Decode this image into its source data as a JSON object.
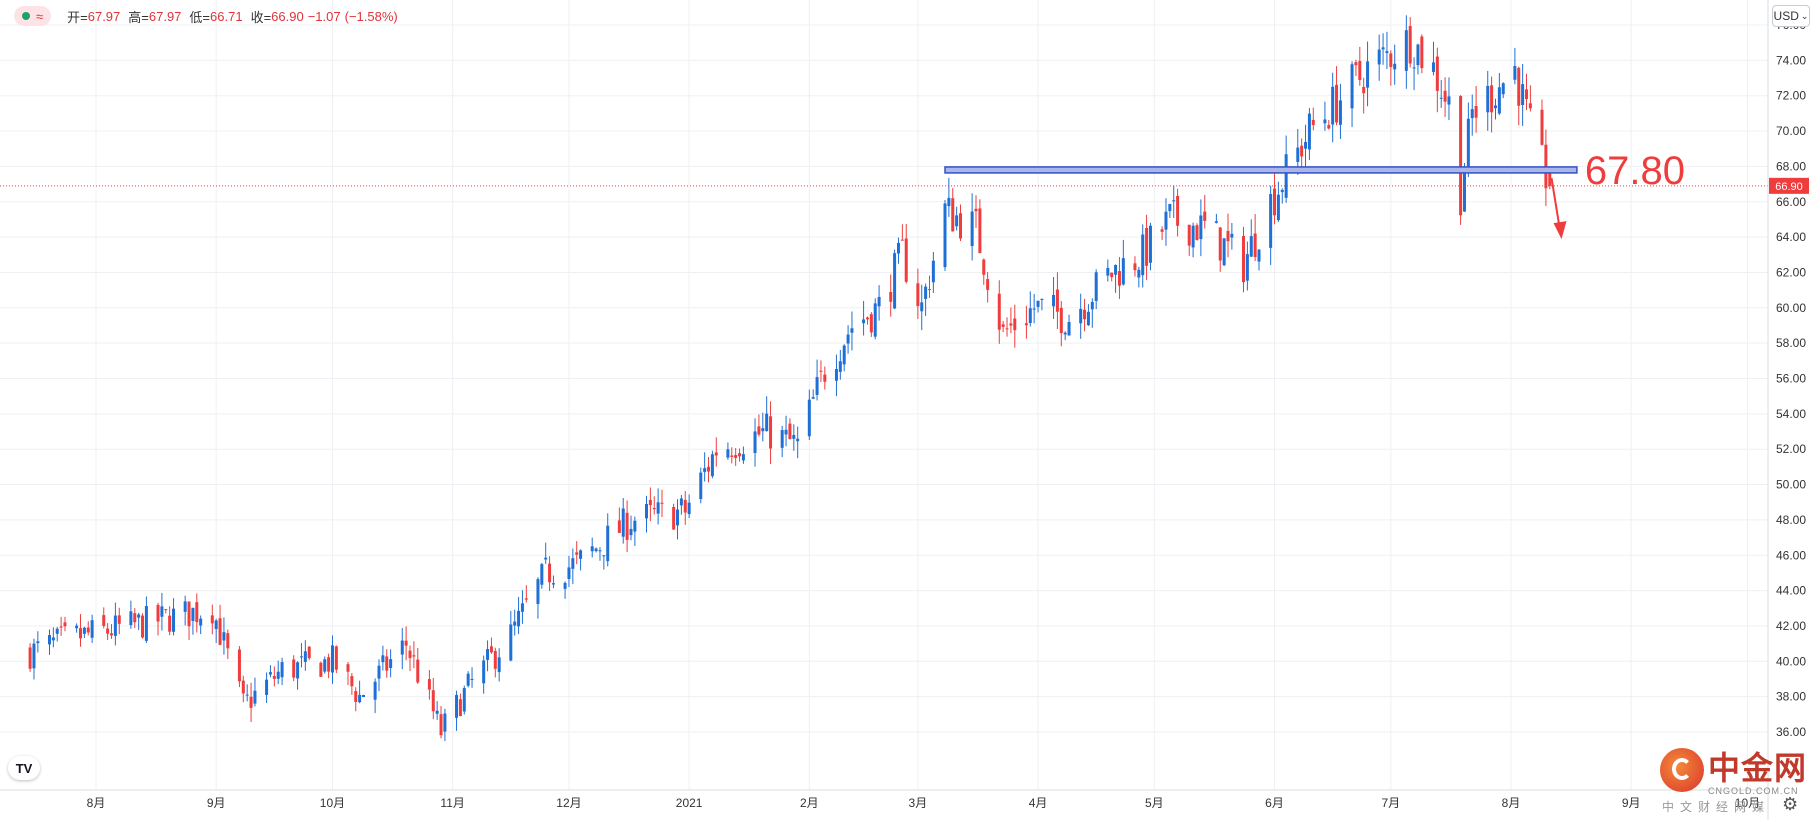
{
  "legend": {
    "symbol_icon": "wave-icon",
    "open_label": "开=",
    "open": "67.97",
    "high_label": "高=",
    "high": "67.97",
    "low_label": "低=",
    "low": "66.71",
    "close_label": "收=",
    "close": "66.90",
    "change": "−1.07",
    "change_pct": "(−1.58%)"
  },
  "currency_button": "USD",
  "watermark": {
    "brand": "中金网",
    "domain": "CNGOLD.COM.CN",
    "sub": "中文财经网媒"
  },
  "chart_data": {
    "type": "candlestick",
    "x_ticks": [
      "8月",
      "9月",
      "10月",
      "11月",
      "12月",
      "2021",
      "2月",
      "3月",
      "4月",
      "5月",
      "6月",
      "7月",
      "8月",
      "9月",
      "10月"
    ],
    "y_ticks": [
      "36.00",
      "38.00",
      "40.00",
      "42.00",
      "44.00",
      "46.00",
      "48.00",
      "50.00",
      "52.00",
      "54.00",
      "56.00",
      "58.00",
      "60.00",
      "62.00",
      "64.00",
      "66.00",
      "68.00",
      "70.00",
      "72.00",
      "74.00",
      "76.00"
    ],
    "ylim": [
      35,
      77
    ],
    "up_color": "#1e6fd6",
    "down_color": "#ef3c3c",
    "current_price": "66.90",
    "level_line": {
      "value": 67.8,
      "label": "67.80"
    },
    "anchors": [
      [
        "2020-07-15",
        40.5
      ],
      [
        "2020-07-25",
        41.3
      ],
      [
        "2020-08-10",
        42.0
      ],
      [
        "2020-08-31",
        43.0
      ],
      [
        "2020-09-08",
        37.5
      ],
      [
        "2020-09-18",
        39.5
      ],
      [
        "2020-10-01",
        40.0
      ],
      [
        "2020-10-08",
        38.0
      ],
      [
        "2020-10-20",
        41.0
      ],
      [
        "2020-10-29",
        36.0
      ],
      [
        "2020-11-05",
        38.5
      ],
      [
        "2020-11-16",
        41.5
      ],
      [
        "2020-11-25",
        45.0
      ],
      [
        "2020-12-03",
        45.5
      ],
      [
        "2020-12-17",
        48.0
      ],
      [
        "2020-12-31",
        48.5
      ],
      [
        "2021-01-08",
        52.0
      ],
      [
        "2021-01-21",
        53.0
      ],
      [
        "2021-01-29",
        52.2
      ],
      [
        "2021-02-05",
        56.5
      ],
      [
        "2021-02-12",
        59.0
      ],
      [
        "2021-02-19",
        60.0
      ],
      [
        "2021-02-25",
        63.0
      ],
      [
        "2021-03-02",
        60.0
      ],
      [
        "2021-03-08",
        65.5
      ],
      [
        "2021-03-16",
        64.5
      ],
      [
        "2021-03-23",
        58.5
      ],
      [
        "2021-03-31",
        60.0
      ],
      [
        "2021-04-09",
        59.5
      ],
      [
        "2021-04-20",
        62.0
      ],
      [
        "2021-04-28",
        63.0
      ],
      [
        "2021-05-05",
        65.0
      ],
      [
        "2021-05-14",
        64.5
      ],
      [
        "2021-05-24",
        62.5
      ],
      [
        "2021-05-31",
        66.0
      ],
      [
        "2021-06-10",
        70.0
      ],
      [
        "2021-06-25",
        73.5
      ],
      [
        "2021-07-06",
        75.2
      ],
      [
        "2021-07-12",
        73.5
      ],
      [
        "2021-07-16",
        71.5
      ],
      [
        "2021-07-19",
        66.5
      ],
      [
        "2021-07-22",
        71.0
      ],
      [
        "2021-08-02",
        73.5
      ],
      [
        "2021-08-06",
        70.0
      ],
      [
        "2021-08-09",
        68.0
      ],
      [
        "2021-08-11",
        66.9
      ]
    ]
  }
}
